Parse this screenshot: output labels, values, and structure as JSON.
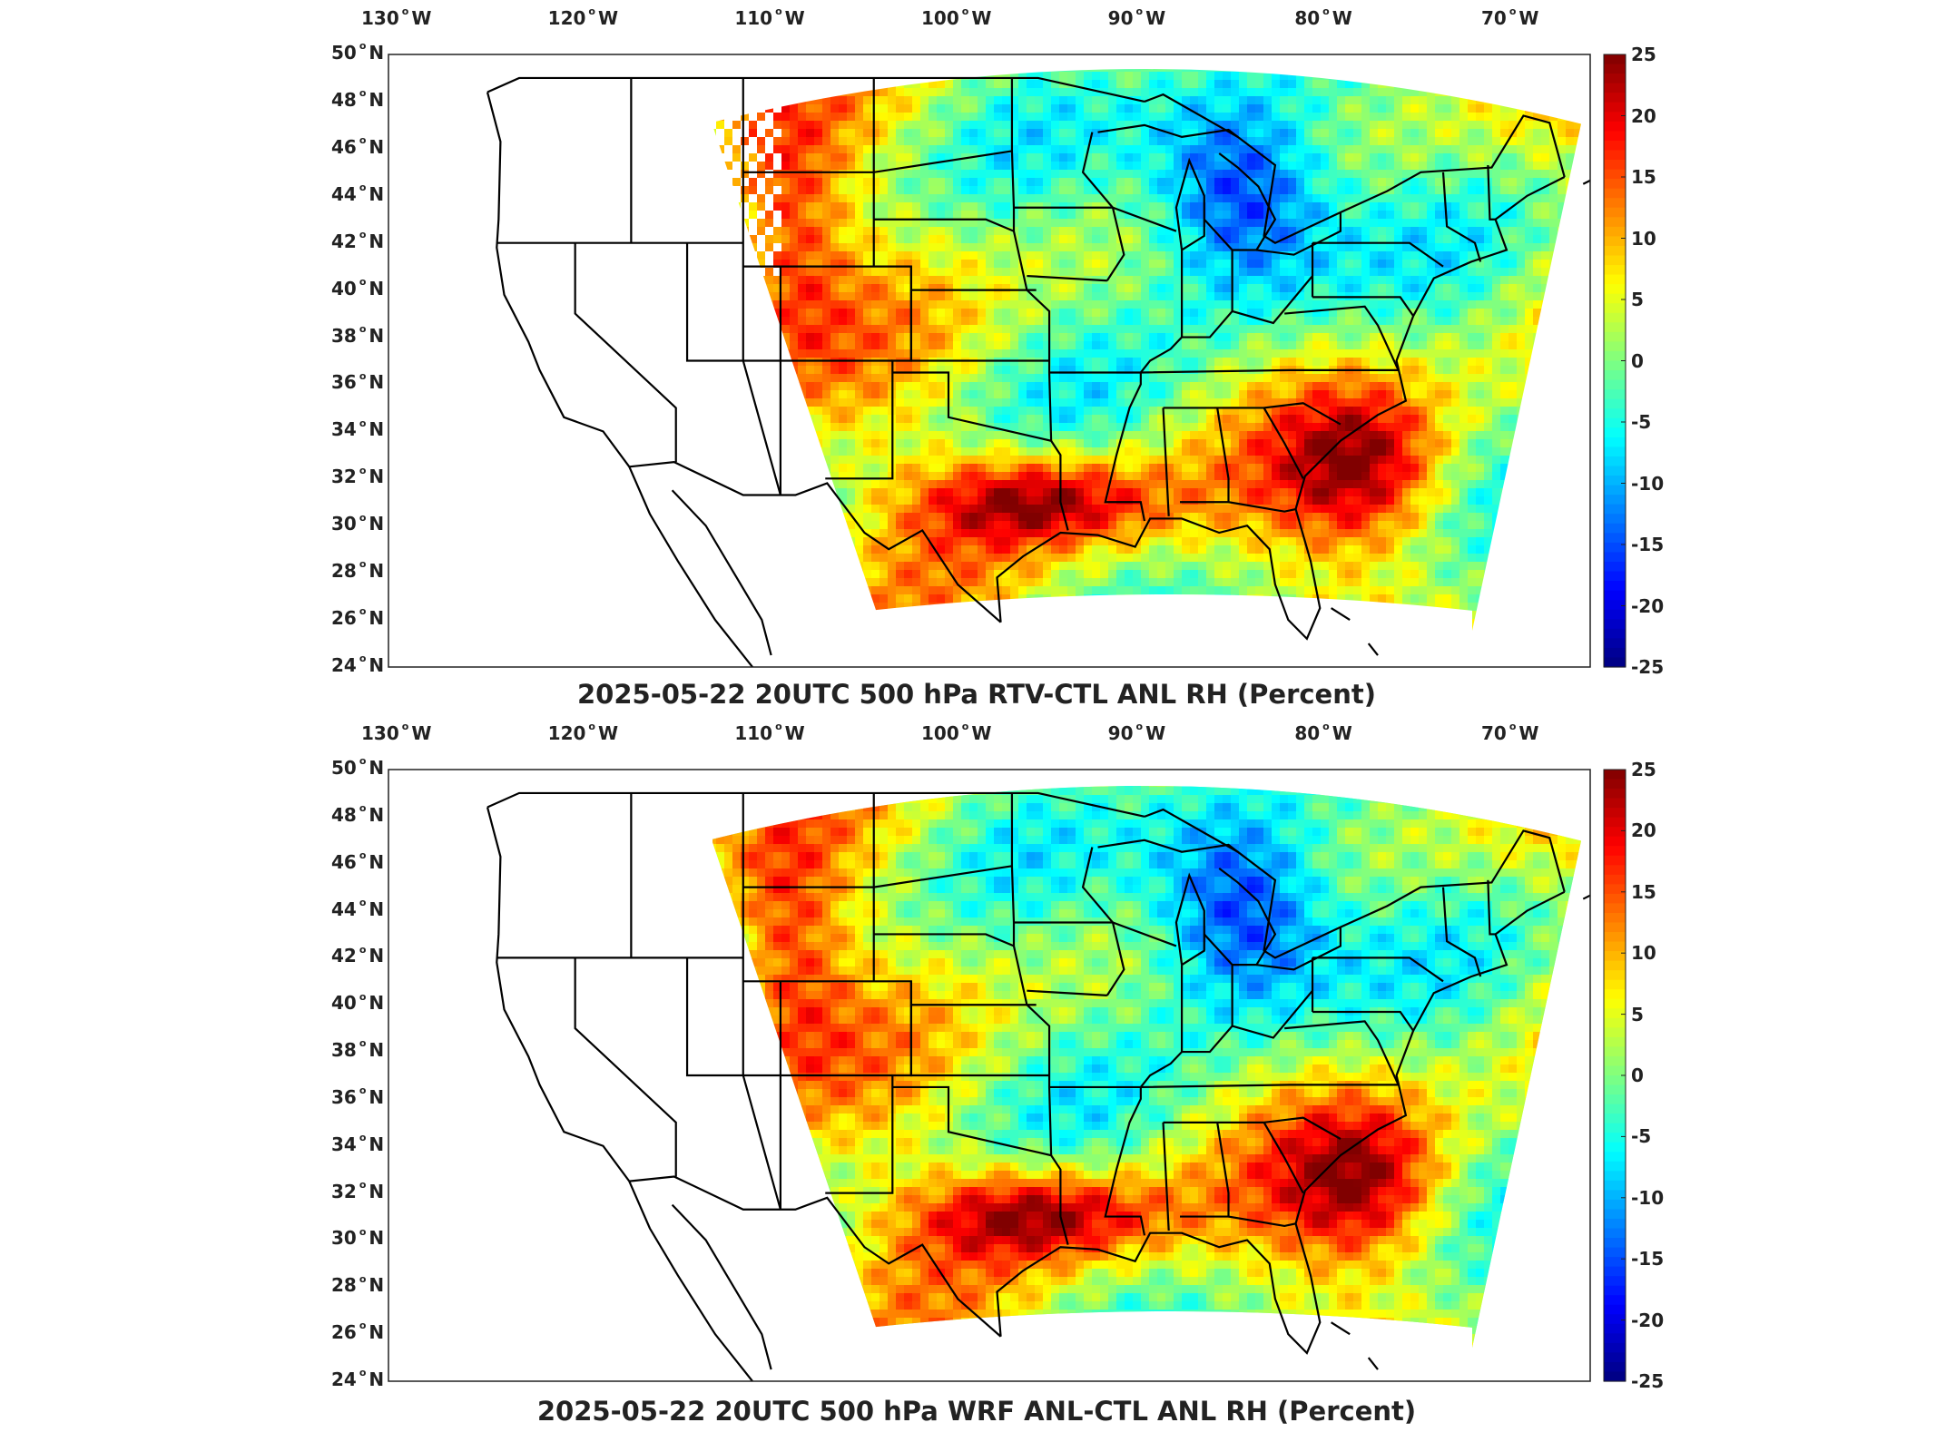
{
  "maps": [
    {
      "title": "2025-05-22 20UTC 500 hPa RTV-CTL ANL RH (Percent)",
      "lon_ticks": [
        "130",
        "120",
        "110",
        "100",
        "90",
        "80",
        "70"
      ],
      "lon_suffix": "W",
      "lat_ticks": [
        "50",
        "48",
        "46",
        "44",
        "42",
        "40",
        "38",
        "36",
        "34",
        "32",
        "30",
        "28",
        "26",
        "24"
      ],
      "lat_suffix": "N",
      "colorbar_ticks": [
        "25",
        "20",
        "15",
        "10",
        "5",
        "0",
        "-5",
        "-10",
        "-15",
        "-20",
        "-25"
      ],
      "colorbar_range": [
        -25,
        25
      ],
      "colormap": "jet",
      "missing_data_shown_as": "white"
    },
    {
      "title": "2025-05-22 20UTC 500 hPa WRF ANL-CTL ANL RH (Percent)",
      "lon_ticks": [
        "130",
        "120",
        "110",
        "100",
        "90",
        "80",
        "70"
      ],
      "lon_suffix": "W",
      "lat_ticks": [
        "50",
        "48",
        "46",
        "44",
        "42",
        "40",
        "38",
        "36",
        "34",
        "32",
        "30",
        "28",
        "26",
        "24"
      ],
      "lat_suffix": "N",
      "colorbar_ticks": [
        "25",
        "20",
        "15",
        "10",
        "5",
        "0",
        "-5",
        "-10",
        "-15",
        "-20",
        "-25"
      ],
      "colorbar_range": [
        -25,
        25
      ],
      "colormap": "jet",
      "missing_data_shown_as": "light-green"
    }
  ],
  "colors": {
    "jet_low": "#00008f",
    "jet_mid": "#7fff7f",
    "jet_high": "#800000",
    "border_lines": "#000000"
  }
}
